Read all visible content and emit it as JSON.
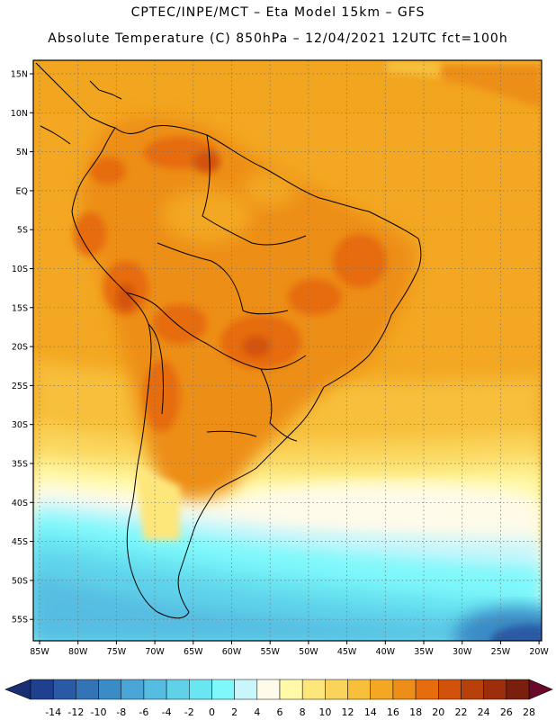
{
  "header": {
    "title_line1": "CPTEC/INPE/MCT –  Eta Model 15km – GFS",
    "title_line2": "Absolute Temperature (C) 850hPa – 12/04/2021 12UTC fct=100h"
  },
  "map": {
    "lat_labels": [
      "15N",
      "10N",
      "5N",
      "EQ",
      "5S",
      "10S",
      "15S",
      "20S",
      "25S",
      "30S",
      "35S",
      "40S",
      "45S",
      "50S",
      "55S"
    ],
    "lon_labels": [
      "85W",
      "80W",
      "75W",
      "70W",
      "65W",
      "60W",
      "55W",
      "50W",
      "45W",
      "40W",
      "35W",
      "30W",
      "25W",
      "20W"
    ]
  },
  "colorbar": {
    "labels": [
      "-14",
      "-12",
      "-10",
      "-8",
      "-6",
      "-4",
      "-2",
      "0",
      "2",
      "4",
      "6",
      "8",
      "10",
      "12",
      "14",
      "16",
      "18",
      "20",
      "22",
      "24",
      "26",
      "28"
    ],
    "colors": [
      "#1f3f8f",
      "#2a5aa5",
      "#3274b6",
      "#3a8cc6",
      "#4aa6d6",
      "#56bde2",
      "#5fd2ea",
      "#6ae6f2",
      "#7ff8fb",
      "#c9f6fb",
      "#fffbea",
      "#fff9a8",
      "#fde67a",
      "#fad45a",
      "#f7bf3a",
      "#f3a722",
      "#ed8e18",
      "#e66c0e",
      "#d2520c",
      "#b8400b",
      "#9c2e0c",
      "#7a1f0d"
    ],
    "low_arrow_color": "#1a2f72",
    "high_arrow_color": "#6a0a2a"
  }
}
